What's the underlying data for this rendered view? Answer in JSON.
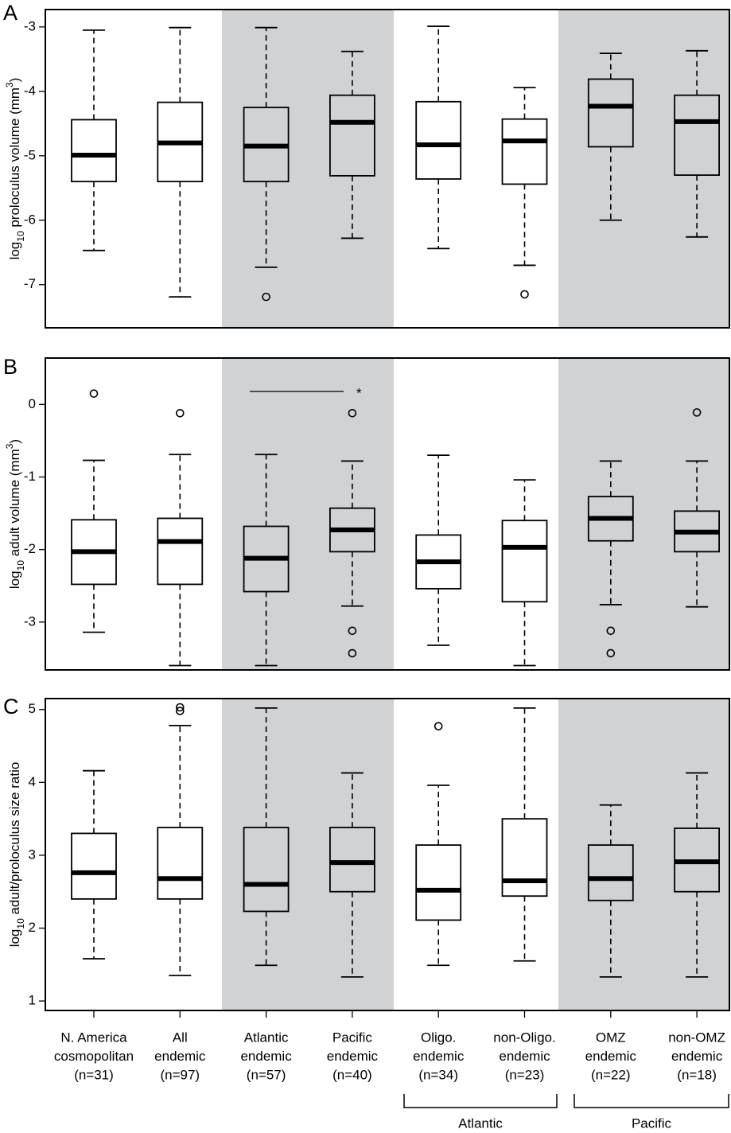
{
  "chart_data": [
    {
      "type": "box",
      "panel": "A",
      "ylabel": {
        "text": "log",
        "sub": "10",
        "rest": " proloculus volume (mm",
        "sup": "3",
        "end": ")"
      },
      "ylim": [
        -7.67,
        -2.73
      ],
      "yticks": [
        -3,
        -4,
        -5,
        -6,
        -7
      ],
      "boxes": [
        {
          "whislo": -6.47,
          "q1": -5.4,
          "med": -4.99,
          "q3": -4.44,
          "whishi": -3.05,
          "fliers": []
        },
        {
          "whislo": -7.19,
          "q1": -5.4,
          "med": -4.8,
          "q3": -4.17,
          "whishi": -3.01,
          "fliers": []
        },
        {
          "whislo": -6.73,
          "q1": -5.4,
          "med": -4.85,
          "q3": -4.25,
          "whishi": -3.01,
          "fliers": [
            -7.19
          ]
        },
        {
          "whislo": -6.28,
          "q1": -5.31,
          "med": -4.48,
          "q3": -4.06,
          "whishi": -3.38,
          "fliers": []
        },
        {
          "whislo": -6.44,
          "q1": -5.36,
          "med": -4.83,
          "q3": -4.16,
          "whishi": -2.99,
          "fliers": []
        },
        {
          "whislo": -6.7,
          "q1": -5.44,
          "med": -4.77,
          "q3": -4.43,
          "whishi": -3.94,
          "fliers": [
            -7.15
          ]
        },
        {
          "whislo": -6.0,
          "q1": -4.86,
          "med": -4.23,
          "q3": -3.81,
          "whishi": -3.41,
          "fliers": []
        },
        {
          "whislo": -6.26,
          "q1": -5.3,
          "med": -4.47,
          "q3": -4.06,
          "whishi": -3.37,
          "fliers": []
        }
      ]
    },
    {
      "type": "box",
      "panel": "B",
      "ylabel": {
        "text": "log",
        "sub": "10",
        "rest": " adult volume (mm",
        "sup": "3",
        "end": ")"
      },
      "ylim": [
        -3.66,
        0.64
      ],
      "yticks": [
        0,
        -1,
        -2,
        -3
      ],
      "annotation": "*",
      "boxes": [
        {
          "whislo": -3.14,
          "q1": -2.48,
          "med": -2.03,
          "q3": -1.59,
          "whishi": -0.77,
          "fliers": [
            0.15
          ]
        },
        {
          "whislo": -3.6,
          "q1": -2.48,
          "med": -1.89,
          "q3": -1.57,
          "whishi": -0.69,
          "fliers": [
            -0.12
          ]
        },
        {
          "whislo": -3.6,
          "q1": -2.58,
          "med": -2.12,
          "q3": -1.68,
          "whishi": -0.69,
          "fliers": []
        },
        {
          "whislo": -2.78,
          "q1": -2.03,
          "med": -1.73,
          "q3": -1.43,
          "whishi": -0.78,
          "fliers": [
            -0.12,
            -3.12,
            -3.43
          ]
        },
        {
          "whislo": -3.32,
          "q1": -2.54,
          "med": -2.17,
          "q3": -1.8,
          "whishi": -0.7,
          "fliers": []
        },
        {
          "whislo": -3.6,
          "q1": -2.72,
          "med": -1.97,
          "q3": -1.6,
          "whishi": -1.04,
          "fliers": []
        },
        {
          "whislo": -2.76,
          "q1": -1.88,
          "med": -1.57,
          "q3": -1.27,
          "whishi": -0.78,
          "fliers": [
            -3.12,
            -3.43
          ]
        },
        {
          "whislo": -2.79,
          "q1": -2.03,
          "med": -1.76,
          "q3": -1.47,
          "whishi": -0.78,
          "fliers": [
            -0.11
          ]
        }
      ]
    },
    {
      "type": "box",
      "panel": "C",
      "ylabel": {
        "text": "log",
        "sub": "10",
        "rest": " adult/proloculus size ratio"
      },
      "ylim": [
        0.87,
        5.15
      ],
      "yticks": [
        1,
        2,
        3,
        4,
        5
      ],
      "categories": [
        [
          "N. America",
          "cosmopolitan",
          "(n=31)"
        ],
        [
          "All",
          "endemic",
          "(n=97)"
        ],
        [
          "Atlantic",
          "endemic",
          "(n=57)"
        ],
        [
          "Pacific",
          "endemic",
          "(n=40)"
        ],
        [
          "Oligo.",
          "endemic",
          "(n=34)"
        ],
        [
          "non-Oligo.",
          "endemic",
          "(n=23)"
        ],
        [
          "OMZ",
          "endemic",
          "(n=22)"
        ],
        [
          "non-OMZ",
          "endemic",
          "(n=18)"
        ]
      ],
      "group_labels": [
        "Atlantic",
        "Pacific"
      ],
      "boxes": [
        {
          "whislo": 1.58,
          "q1": 2.4,
          "med": 2.76,
          "q3": 3.3,
          "whishi": 4.16,
          "fliers": []
        },
        {
          "whislo": 1.35,
          "q1": 2.4,
          "med": 2.68,
          "q3": 3.38,
          "whishi": 4.78,
          "fliers": [
            5.03,
            4.98
          ]
        },
        {
          "whislo": 1.49,
          "q1": 2.23,
          "med": 2.6,
          "q3": 3.38,
          "whishi": 5.02,
          "fliers": []
        },
        {
          "whislo": 1.33,
          "q1": 2.5,
          "med": 2.9,
          "q3": 3.38,
          "whishi": 4.13,
          "fliers": []
        },
        {
          "whislo": 1.49,
          "q1": 2.11,
          "med": 2.52,
          "q3": 3.14,
          "whishi": 3.96,
          "fliers": [
            4.77
          ]
        },
        {
          "whislo": 1.55,
          "q1": 2.44,
          "med": 2.65,
          "q3": 3.5,
          "whishi": 5.02,
          "fliers": []
        },
        {
          "whislo": 1.33,
          "q1": 2.38,
          "med": 2.68,
          "q3": 3.14,
          "whishi": 3.69,
          "fliers": []
        },
        {
          "whislo": 1.33,
          "q1": 2.5,
          "med": 2.91,
          "q3": 3.37,
          "whishi": 4.13,
          "fliers": []
        }
      ]
    }
  ]
}
